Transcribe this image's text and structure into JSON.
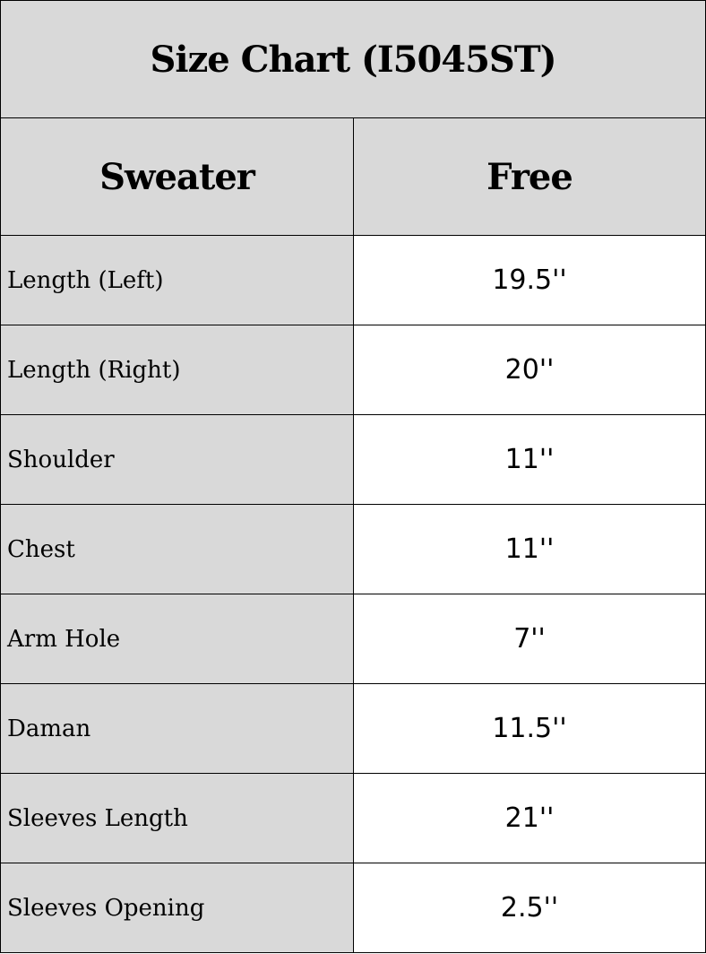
{
  "title": "Size Chart (I5045ST)",
  "header": {
    "item": "Sweater",
    "size": "Free"
  },
  "rows": [
    {
      "label": "Length (Left)",
      "value": "19.5''"
    },
    {
      "label": "Length (Right)",
      "value": "20''"
    },
    {
      "label": "Shoulder",
      "value": "11''"
    },
    {
      "label": "Chest",
      "value": "11''"
    },
    {
      "label": "Arm Hole",
      "value": "7''"
    },
    {
      "label": "Daman",
      "value": "11.5''"
    },
    {
      "label": "Sleeves Length",
      "value": "21''"
    },
    {
      "label": "Sleeves Opening",
      "value": "2.5''"
    }
  ],
  "colors": {
    "header_bg": "#d9d9d9",
    "value_bg": "#ffffff",
    "border": "#000000"
  }
}
